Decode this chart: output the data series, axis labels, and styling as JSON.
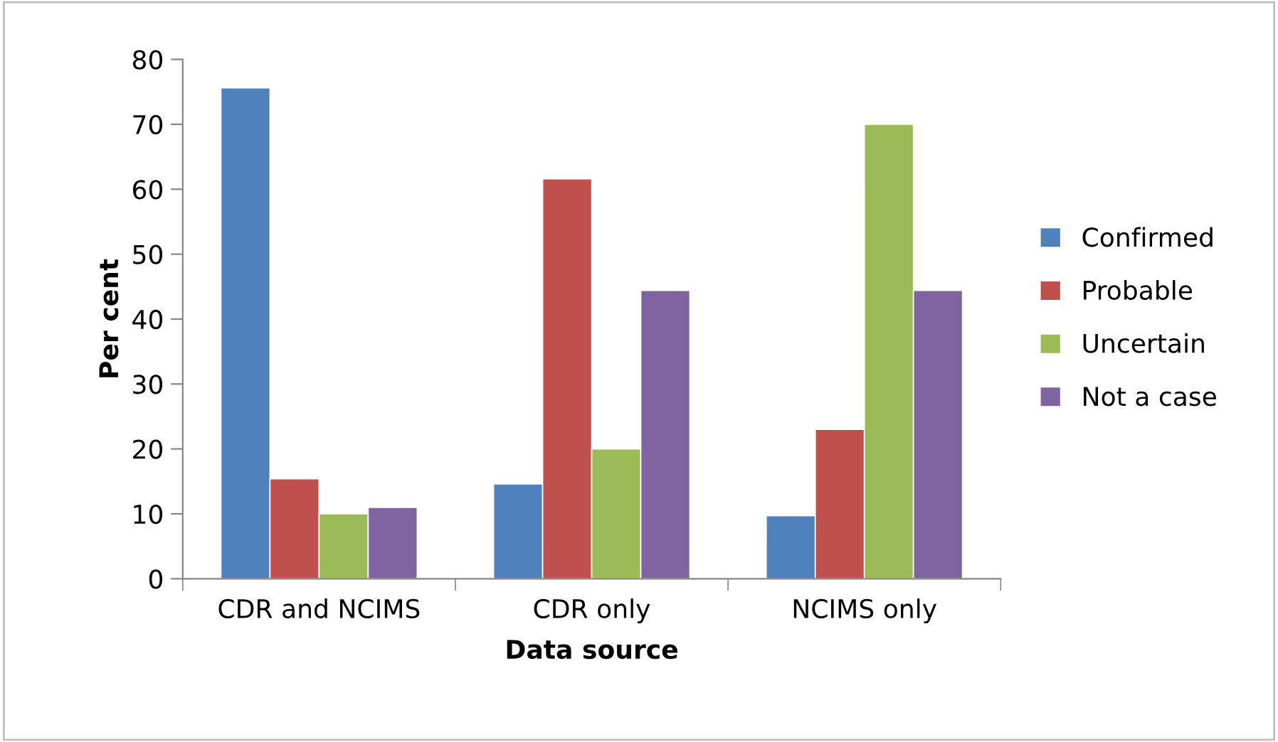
{
  "chart_data": {
    "type": "bar",
    "xlabel": "Data source",
    "ylabel": "Per cent",
    "categories": [
      "CDR and NCIMS",
      "CDR only",
      "NCIMS only"
    ],
    "series": [
      {
        "name": "Confirmed",
        "color": "#4f81bd",
        "values": [
          75.6,
          14.6,
          9.7
        ]
      },
      {
        "name": "Probable",
        "color": "#c0504d",
        "values": [
          15.4,
          61.6,
          23.0
        ]
      },
      {
        "name": "Uncertain",
        "color": "#9bbb59",
        "values": [
          10.0,
          20.0,
          70.0
        ]
      },
      {
        "name": "Not a case",
        "color": "#8064a2",
        "values": [
          11.0,
          44.4,
          44.4
        ]
      }
    ],
    "ylim": [
      0,
      80
    ],
    "yticks": [
      0,
      10,
      20,
      30,
      40,
      50,
      60,
      70,
      80
    ],
    "grid": false,
    "legend": "right"
  }
}
